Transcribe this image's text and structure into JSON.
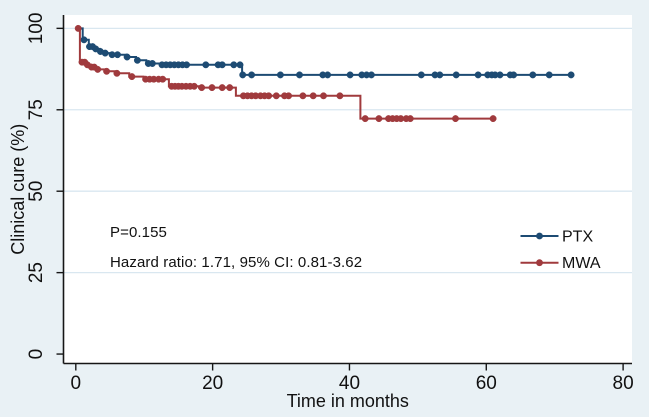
{
  "figure": {
    "background_color": "#e9f1f5",
    "plot_background_color": "#ffffff",
    "grid_color": "#d9e7f0",
    "axis_color": "#161616",
    "text_color": "#111111"
  },
  "chart_data": {
    "type": "line",
    "subtype": "kaplan-meier-step",
    "title": "",
    "xlabel": "Time in months",
    "ylabel": "Clinical cure (%)",
    "x_ticks": [
      0,
      20,
      40,
      60,
      80
    ],
    "y_ticks": [
      0,
      25,
      50,
      75,
      100
    ],
    "xlim": [
      -1.8,
      81.3
    ],
    "ylim": [
      -2.9,
      104.1
    ],
    "grid": "horizontal",
    "legend_position": "right-middle",
    "annotations": [
      "P=0.155",
      "Hazard ratio: 1.71, 95% CI: 0.81-3.62"
    ],
    "series": [
      {
        "name": "PTX",
        "color": "#1d4b73",
        "end_x": 72.7,
        "steps": [
          [
            0.35,
            100
          ],
          [
            1.0,
            96.5
          ],
          [
            1.9,
            94.4
          ],
          [
            2.8,
            93.7
          ],
          [
            3.5,
            92.9
          ],
          [
            4.2,
            92.4
          ],
          [
            5.2,
            91.9
          ],
          [
            7.3,
            91.2
          ],
          [
            8.8,
            90.2
          ],
          [
            10.3,
            89.2
          ],
          [
            12.4,
            88.8
          ],
          [
            24.3,
            85.7
          ]
        ],
        "censor_marks": [
          [
            1.2,
            96.5
          ],
          [
            2.0,
            94.4
          ],
          [
            2.45,
            94.4
          ],
          [
            2.9,
            93.7
          ],
          [
            3.6,
            92.9
          ],
          [
            4.3,
            92.4
          ],
          [
            5.3,
            91.9
          ],
          [
            6.1,
            91.9
          ],
          [
            7.5,
            91.2
          ],
          [
            9.0,
            90.2
          ],
          [
            10.6,
            89.2
          ],
          [
            11.2,
            89.2
          ],
          [
            12.6,
            88.8
          ],
          [
            13.2,
            88.8
          ],
          [
            13.8,
            88.8
          ],
          [
            14.4,
            88.8
          ],
          [
            15.0,
            88.8
          ],
          [
            15.6,
            88.8
          ],
          [
            16.2,
            88.8
          ],
          [
            19.0,
            88.8
          ],
          [
            20.8,
            88.8
          ],
          [
            21.4,
            88.8
          ],
          [
            23.1,
            88.8
          ],
          [
            24.0,
            88.8
          ],
          [
            24.4,
            85.7
          ],
          [
            25.7,
            85.7
          ],
          [
            29.9,
            85.7
          ],
          [
            32.7,
            85.7
          ],
          [
            36.1,
            85.7
          ],
          [
            36.8,
            85.7
          ],
          [
            40.1,
            85.7
          ],
          [
            41.8,
            85.7
          ],
          [
            42.5,
            85.7
          ],
          [
            43.2,
            85.7
          ],
          [
            50.5,
            85.7
          ],
          [
            52.5,
            85.7
          ],
          [
            53.2,
            85.7
          ],
          [
            55.6,
            85.7
          ],
          [
            58.8,
            85.7
          ],
          [
            60.2,
            85.7
          ],
          [
            60.8,
            85.7
          ],
          [
            61.3,
            85.7
          ],
          [
            62.0,
            85.7
          ],
          [
            63.5,
            85.7
          ],
          [
            64.0,
            85.7
          ],
          [
            66.8,
            85.7
          ],
          [
            69.2,
            85.7
          ],
          [
            72.4,
            85.7
          ]
        ]
      },
      {
        "name": "MWA",
        "color": "#a03a3d",
        "end_x": 61.3,
        "steps": [
          [
            0.35,
            100
          ],
          [
            0.6,
            89.6
          ],
          [
            1.5,
            88.8
          ],
          [
            2.2,
            88.1
          ],
          [
            3.0,
            87.4
          ],
          [
            4.3,
            86.8
          ],
          [
            5.7,
            86.2
          ],
          [
            7.8,
            85.2
          ],
          [
            9.9,
            84.4
          ],
          [
            13.6,
            82.2
          ],
          [
            18.0,
            81.8
          ],
          [
            23.4,
            79.3
          ],
          [
            41.6,
            72.3
          ]
        ],
        "censor_marks": [
          [
            0.35,
            100
          ],
          [
            0.9,
            89.6
          ],
          [
            1.3,
            89.6
          ],
          [
            1.7,
            88.8
          ],
          [
            2.3,
            88.1
          ],
          [
            2.7,
            88.1
          ],
          [
            3.2,
            87.4
          ],
          [
            4.5,
            86.8
          ],
          [
            6.0,
            86.2
          ],
          [
            8.2,
            85.2
          ],
          [
            10.2,
            84.4
          ],
          [
            10.8,
            84.4
          ],
          [
            11.4,
            84.4
          ],
          [
            12.1,
            84.4
          ],
          [
            12.7,
            84.4
          ],
          [
            14.0,
            82.2
          ],
          [
            14.5,
            82.2
          ],
          [
            15.0,
            82.2
          ],
          [
            15.5,
            82.2
          ],
          [
            16.1,
            82.2
          ],
          [
            16.7,
            82.2
          ],
          [
            17.3,
            82.2
          ],
          [
            18.4,
            81.8
          ],
          [
            19.9,
            81.8
          ],
          [
            21.4,
            81.8
          ],
          [
            22.5,
            81.8
          ],
          [
            24.5,
            79.3
          ],
          [
            25.1,
            79.3
          ],
          [
            25.7,
            79.3
          ],
          [
            26.3,
            79.3
          ],
          [
            27.0,
            79.3
          ],
          [
            27.6,
            79.3
          ],
          [
            28.2,
            79.3
          ],
          [
            29.3,
            79.3
          ],
          [
            30.5,
            79.3
          ],
          [
            31.1,
            79.3
          ],
          [
            33.2,
            79.3
          ],
          [
            34.7,
            79.3
          ],
          [
            36.2,
            79.3
          ],
          [
            38.6,
            79.3
          ],
          [
            42.3,
            72.3
          ],
          [
            44.3,
            72.3
          ],
          [
            45.7,
            72.3
          ],
          [
            46.3,
            72.3
          ],
          [
            46.9,
            72.3
          ],
          [
            47.5,
            72.3
          ],
          [
            48.3,
            72.3
          ],
          [
            48.9,
            72.3
          ],
          [
            55.5,
            72.3
          ],
          [
            61.0,
            72.3
          ]
        ]
      }
    ]
  },
  "legend": {
    "items": [
      {
        "label": "PTX"
      },
      {
        "label": "MWA"
      }
    ]
  }
}
